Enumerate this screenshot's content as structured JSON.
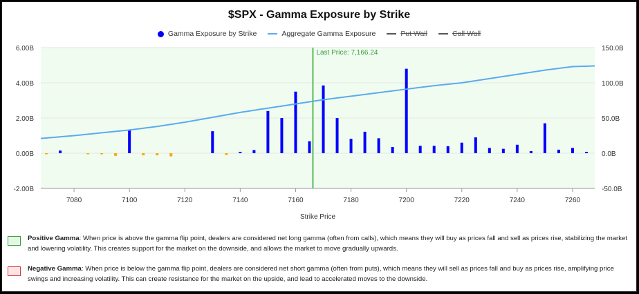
{
  "page": {
    "title": "$SPX - Gamma Exposure by Strike",
    "legend": [
      {
        "label": "Gamma Exposure by Strike",
        "marker": "dot",
        "color": "#0000ff",
        "hidden": false
      },
      {
        "label": "Aggregate Gamma Exposure",
        "marker": "line",
        "color": "#5aaaf0",
        "hidden": false
      },
      {
        "label": "Put Wall",
        "marker": "line",
        "color": "#555555",
        "hidden": true
      },
      {
        "label": "Call Wall",
        "marker": "line",
        "color": "#555555",
        "hidden": true
      }
    ],
    "last_price_label": "Last Price: 7,166.24",
    "notes": [
      {
        "title": "Positive Gamma",
        "text": ": When price is above the gamma flip point, dealers are considered net long gamma (often from calls), which means they will buy as prices fall and sell as prices rise, stabilizing the market and lowering volatility. This creates support for the market on the downside, and allows the market to move gradually upwards."
      },
      {
        "title": "Negative Gamma",
        "text": ": When price is below the gamma flip point, dealers are considered net short gamma (often from puts), which means they will sell as prices fall and buy as prices rise, amplifying price swings and increasing volatility. This can create resistance for the market on the upside, and lead to accelerated moves to the downside."
      }
    ]
  },
  "chart_data": {
    "type": "bar",
    "title": "$SPX - Gamma Exposure by Strike",
    "xlabel": "Strike Price",
    "ylabel_left": "Gamma Exposure by Strike",
    "ylabel_right": "Aggregate Gamma Exposure",
    "xlim": [
      7068,
      7268
    ],
    "ylim_left": [
      -2.0,
      6.0
    ],
    "ylim_right": [
      -50.0,
      150.0
    ],
    "x_ticks": [
      7080,
      7100,
      7120,
      7140,
      7160,
      7180,
      7200,
      7220,
      7240,
      7260
    ],
    "y_left_ticks": [
      "-2.00B",
      "0.00B",
      "2.00B",
      "4.00B",
      "6.00B"
    ],
    "y_right_ticks": [
      "-50.0B",
      "0.0B",
      "50.0B",
      "100.0B",
      "150.0B"
    ],
    "last_price": 7166.24,
    "background": "#f0fcf0",
    "positive_color": "#0000ff",
    "negative_color": "#ffa500",
    "bars": {
      "strikes": [
        7070,
        7075,
        7085,
        7090,
        7095,
        7100,
        7105,
        7110,
        7115,
        7130,
        7135,
        7140,
        7145,
        7150,
        7155,
        7160,
        7165,
        7170,
        7175,
        7180,
        7185,
        7190,
        7195,
        7200,
        7205,
        7210,
        7215,
        7220,
        7225,
        7230,
        7235,
        7240,
        7245,
        7250,
        7255,
        7260,
        7265
      ],
      "values": [
        -0.03,
        0.15,
        -0.05,
        -0.03,
        -0.15,
        1.35,
        -0.12,
        -0.12,
        -0.18,
        1.25,
        -0.1,
        0.08,
        0.18,
        2.4,
        2.0,
        3.5,
        0.68,
        3.85,
        2.0,
        0.82,
        1.22,
        0.85,
        0.35,
        4.8,
        0.42,
        0.42,
        0.4,
        0.6,
        0.9,
        0.3,
        0.25,
        0.48,
        0.12,
        1.7,
        0.2,
        0.3,
        0.08
      ]
    },
    "aggregate_line": {
      "x": [
        7068,
        7080,
        7090,
        7100,
        7110,
        7120,
        7130,
        7140,
        7150,
        7160,
        7170,
        7180,
        7190,
        7200,
        7210,
        7220,
        7230,
        7240,
        7250,
        7260,
        7268
      ],
      "values": [
        21,
        25,
        29,
        33,
        38,
        44,
        51,
        58,
        64,
        70,
        76,
        81,
        86,
        91,
        96,
        100,
        106,
        112,
        118,
        123,
        124
      ]
    }
  }
}
